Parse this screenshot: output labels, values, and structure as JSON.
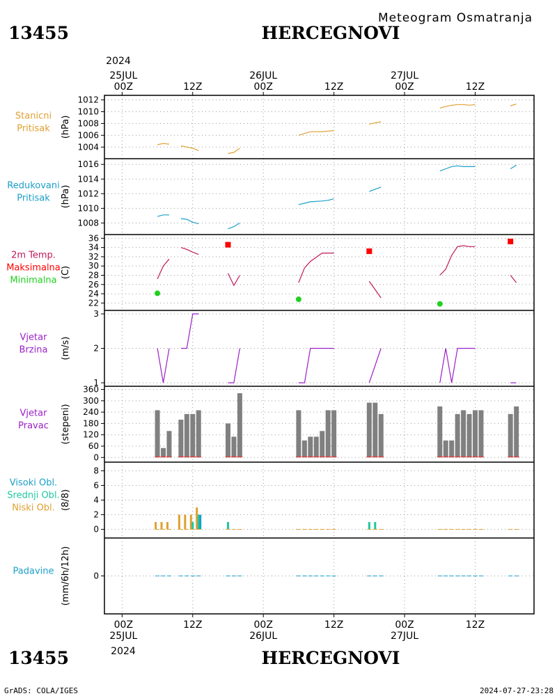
{
  "header": {
    "station_id": "13455",
    "station_name": "HERCEGNOVI",
    "subtitle": "Meteogram Osmatranja",
    "top_axis": {
      "year": "2024",
      "labels": [
        {
          "t": 0,
          "lines": [
            "25JUL",
            "00Z"
          ]
        },
        {
          "t": 12,
          "lines": [
            "12Z"
          ]
        },
        {
          "t": 24,
          "lines": [
            "26JUL",
            "00Z"
          ]
        },
        {
          "t": 36,
          "lines": [
            "12Z"
          ]
        },
        {
          "t": 48,
          "lines": [
            "27JUL",
            "00Z"
          ]
        },
        {
          "t": 60,
          "lines": [
            "12Z"
          ]
        }
      ]
    }
  },
  "footer": {
    "station_id": "13455",
    "station_name": "HERCEGNOVI",
    "credit": "GrADS: COLA/IGES",
    "timestamp": "2024-07-27-23:28",
    "bottom_axis": {
      "year": "2024",
      "labels": [
        {
          "t": 0,
          "lines": [
            "00Z",
            "25JUL"
          ]
        },
        {
          "t": 12,
          "lines": [
            "12Z"
          ]
        },
        {
          "t": 24,
          "lines": [
            "00Z",
            "26JUL"
          ]
        },
        {
          "t": 36,
          "lines": [
            "12Z"
          ]
        },
        {
          "t": 48,
          "lines": [
            "00Z",
            "27JUL"
          ]
        },
        {
          "t": 60,
          "lines": [
            "12Z"
          ]
        }
      ]
    }
  },
  "colors": {
    "station_pressure": "#e0a030",
    "reduced_pressure": "#1a9fc8",
    "temperature": "#c0185a",
    "maximum": "#ff0000",
    "minimum": "#1fd01f",
    "wind": "#9b1fc8",
    "direction_bar": "#808080",
    "direction_base": "#ff3030",
    "high_cloud": "#1a9fc8",
    "mid_cloud": "#1fc8a0",
    "low_cloud": "#e0a030",
    "precip": "#1a9fc8"
  },
  "chart_data": [
    {
      "id": "station-pressure",
      "type": "line",
      "labels": [
        {
          "text": "Stanicni",
          "color": "#e0a030"
        },
        {
          "text": "Pritisak",
          "color": "#e0a030"
        }
      ],
      "ylabel": "(hPa)",
      "ylim": [
        1002.5,
        1012.3
      ],
      "yticks": [
        1004,
        1006,
        1008,
        1010,
        1012
      ],
      "grid": true,
      "series": [
        {
          "color": "#e0a030",
          "points": [
            [
              6,
              1004.4
            ],
            [
              7,
              1004.6
            ],
            [
              8,
              1004.5
            ]
          ]
        },
        {
          "color": "#e0a030",
          "points": [
            [
              10,
              1004.2
            ],
            [
              11,
              1004.0
            ],
            [
              12,
              1003.8
            ],
            [
              13,
              1003.4
            ]
          ]
        },
        {
          "color": "#e0a030",
          "points": [
            [
              18,
              1002.9
            ],
            [
              19,
              1003.1
            ],
            [
              20,
              1003.8
            ]
          ]
        },
        {
          "color": "#e0a030",
          "points": [
            [
              30,
              1006.0
            ],
            [
              31,
              1006.3
            ],
            [
              32,
              1006.6
            ],
            [
              34,
              1006.6
            ],
            [
              35,
              1006.7
            ],
            [
              36,
              1006.8
            ]
          ]
        },
        {
          "color": "#e0a030",
          "points": [
            [
              42,
              1007.9
            ],
            [
              44,
              1008.3
            ]
          ]
        },
        {
          "color": "#e0a030",
          "points": [
            [
              54,
              1010.6
            ],
            [
              55,
              1010.9
            ],
            [
              56,
              1011.1
            ],
            [
              57,
              1011.2
            ],
            [
              58,
              1011.2
            ],
            [
              59,
              1011.1
            ],
            [
              60,
              1011.2
            ]
          ]
        },
        {
          "color": "#e0a030",
          "points": [
            [
              66,
              1011.0
            ],
            [
              67,
              1011.3
            ]
          ]
        }
      ]
    },
    {
      "id": "reduced-pressure",
      "type": "line",
      "labels": [
        {
          "text": "Redukovani",
          "color": "#1a9fc8"
        },
        {
          "text": "Pritisak",
          "color": "#1a9fc8"
        }
      ],
      "ylabel": "(hPa)",
      "ylim": [
        1006.8,
        1016.4
      ],
      "yticks": [
        1008,
        1010,
        1012,
        1014,
        1016
      ],
      "grid": true,
      "series": [
        {
          "color": "#1a9fc8",
          "points": [
            [
              6,
              1008.9
            ],
            [
              7,
              1009.1
            ],
            [
              8,
              1009.1
            ]
          ]
        },
        {
          "color": "#1a9fc8",
          "points": [
            [
              10,
              1008.6
            ],
            [
              11,
              1008.5
            ],
            [
              12,
              1008.1
            ],
            [
              13,
              1007.9
            ]
          ]
        },
        {
          "color": "#1a9fc8",
          "points": [
            [
              18,
              1007.2
            ],
            [
              19,
              1007.5
            ],
            [
              20,
              1008.0
            ]
          ]
        },
        {
          "color": "#1a9fc8",
          "points": [
            [
              30,
              1010.5
            ],
            [
              31,
              1010.7
            ],
            [
              32,
              1010.9
            ],
            [
              34,
              1011.0
            ],
            [
              35,
              1011.1
            ],
            [
              36,
              1011.3
            ]
          ]
        },
        {
          "color": "#1a9fc8",
          "points": [
            [
              42,
              1012.3
            ],
            [
              44,
              1012.9
            ]
          ]
        },
        {
          "color": "#1a9fc8",
          "points": [
            [
              54,
              1015.1
            ],
            [
              55,
              1015.4
            ],
            [
              56,
              1015.7
            ],
            [
              57,
              1015.8
            ],
            [
              58,
              1015.7
            ],
            [
              59,
              1015.7
            ],
            [
              60,
              1015.7
            ]
          ]
        },
        {
          "color": "#1a9fc8",
          "points": [
            [
              66,
              1015.4
            ],
            [
              67,
              1015.9
            ]
          ]
        }
      ]
    },
    {
      "id": "temperature",
      "type": "line",
      "labels": [
        {
          "text": "2m Temp.",
          "color": "#c0185a"
        },
        {
          "text": "Maksimalna",
          "color": "#ff0000"
        },
        {
          "text": "Minimalna",
          "color": "#1fd01f"
        }
      ],
      "ylabel": "(C)",
      "ylim": [
        21,
        36.2
      ],
      "yticks": [
        22,
        24,
        26,
        28,
        30,
        32,
        34,
        36
      ],
      "grid": true,
      "series": [
        {
          "color": "#c0185a",
          "points": [
            [
              6,
              27.2
            ],
            [
              7,
              30.0
            ],
            [
              8,
              31.5
            ]
          ]
        },
        {
          "color": "#c0185a",
          "points": [
            [
              10,
              34.0
            ],
            [
              11,
              33.6
            ],
            [
              12,
              33.0
            ],
            [
              13,
              32.5
            ]
          ]
        },
        {
          "color": "#c0185a",
          "points": [
            [
              18,
              28.4
            ],
            [
              19,
              25.8
            ],
            [
              20,
              28.0
            ]
          ]
        },
        {
          "color": "#c0185a",
          "points": [
            [
              30,
              26.4
            ],
            [
              31,
              29.6
            ],
            [
              32,
              31.0
            ],
            [
              34,
              32.8
            ],
            [
              35,
              32.8
            ],
            [
              36,
              32.8
            ]
          ]
        },
        {
          "color": "#c0185a",
          "points": [
            [
              42,
              26.7
            ],
            [
              44,
              23.1
            ]
          ]
        },
        {
          "color": "#c0185a",
          "points": [
            [
              54,
              28.0
            ],
            [
              55,
              29.3
            ],
            [
              56,
              32.3
            ],
            [
              57,
              34.2
            ],
            [
              58,
              34.4
            ],
            [
              59,
              34.2
            ],
            [
              60,
              34.2
            ]
          ]
        },
        {
          "color": "#c0185a",
          "points": [
            [
              66,
              28.0
            ],
            [
              67,
              26.4
            ]
          ]
        }
      ],
      "maxima": [
        [
          18,
          34.6
        ],
        [
          42,
          33.2
        ],
        [
          66,
          35.3
        ]
      ],
      "minima": [
        [
          6,
          24.1
        ],
        [
          30,
          22.8
        ],
        [
          54,
          21.8
        ]
      ]
    },
    {
      "id": "wind-speed",
      "type": "line",
      "labels": [
        {
          "text": "Vjetar",
          "color": "#9b1fc8"
        },
        {
          "text": "Brzina",
          "color": "#9b1fc8"
        }
      ],
      "ylabel": "(m/s)",
      "ylim": [
        0.98,
        3.02
      ],
      "yticks": [
        1,
        2,
        3
      ],
      "grid": true,
      "series": [
        {
          "color": "#9b1fc8",
          "points": [
            [
              6,
              2
            ],
            [
              7,
              1
            ],
            [
              8,
              2
            ]
          ]
        },
        {
          "color": "#9b1fc8",
          "points": [
            [
              10,
              2
            ],
            [
              11,
              2
            ],
            [
              12,
              3
            ],
            [
              13,
              3
            ]
          ]
        },
        {
          "color": "#9b1fc8",
          "points": [
            [
              18,
              1
            ],
            [
              19,
              1
            ],
            [
              20,
              2
            ]
          ]
        },
        {
          "color": "#9b1fc8",
          "points": [
            [
              30,
              1
            ],
            [
              31,
              1
            ],
            [
              32,
              2
            ],
            [
              34,
              2
            ],
            [
              35,
              2
            ],
            [
              36,
              2
            ]
          ]
        },
        {
          "color": "#9b1fc8",
          "points": [
            [
              42,
              1
            ],
            [
              44,
              2
            ]
          ]
        },
        {
          "color": "#9b1fc8",
          "points": [
            [
              54,
              1
            ],
            [
              55,
              2
            ],
            [
              56,
              1
            ],
            [
              57,
              2
            ],
            [
              58,
              2
            ],
            [
              59,
              2
            ],
            [
              60,
              2
            ]
          ]
        },
        {
          "color": "#9b1fc8",
          "points": [
            [
              66,
              1
            ],
            [
              67,
              1
            ]
          ]
        }
      ]
    },
    {
      "id": "wind-direction",
      "type": "bar",
      "labels": [
        {
          "text": "Vjetar",
          "color": "#9b1fc8"
        },
        {
          "text": "Pravac",
          "color": "#9b1fc8"
        }
      ],
      "ylabel": "(stepeni)",
      "ylim": [
        -10,
        362
      ],
      "yticks": [
        0,
        60,
        120,
        180,
        240,
        300,
        360
      ],
      "ytick_labels": [
        "0",
        "60",
        "120",
        "180",
        "240",
        "300",
        "360"
      ],
      "grid": true,
      "x": [
        6,
        7,
        8,
        10,
        11,
        12,
        13,
        18,
        19,
        20,
        30,
        31,
        32,
        33,
        34,
        35,
        36,
        42,
        43,
        44,
        54,
        55,
        56,
        57,
        58,
        59,
        60,
        61,
        66,
        67
      ],
      "values": [
        250,
        50,
        140,
        200,
        230,
        230,
        250,
        180,
        110,
        340,
        250,
        90,
        110,
        110,
        140,
        250,
        250,
        290,
        290,
        230,
        270,
        90,
        90,
        230,
        250,
        230,
        250,
        250,
        230,
        270
      ]
    },
    {
      "id": "clouds",
      "type": "bar",
      "labels": [
        {
          "text": "Visoki Obl.",
          "color": "#1a9fc8"
        },
        {
          "text": "Srednji Obl.",
          "color": "#1fc8a0"
        },
        {
          "text": "Niski Obl.",
          "color": "#e0a030"
        }
      ],
      "ylabel": "(8/8)",
      "ylim": [
        -0.8,
        8.8
      ],
      "yticks": [
        0,
        2,
        4,
        6,
        8
      ],
      "grid": true,
      "series": [
        {
          "name": "Niski Obl.",
          "color": "#e0a030",
          "x": [
            6,
            7,
            8,
            10,
            11,
            12,
            13
          ],
          "values": [
            1,
            1,
            1,
            2,
            2,
            2,
            3
          ]
        },
        {
          "name": "Srednji Obl.",
          "color": "#1fc8a0",
          "x": [
            12,
            13,
            18,
            42,
            43
          ],
          "values": [
            1,
            2,
            1,
            1,
            1
          ]
        },
        {
          "name": "Visoki Obl.",
          "color": "#1a9fc8",
          "x": [
            13
          ],
          "values": [
            2
          ]
        }
      ],
      "zero_x": [
        6,
        7,
        8,
        10,
        11,
        12,
        13,
        18,
        19,
        20,
        30,
        31,
        32,
        33,
        34,
        35,
        36,
        42,
        43,
        44,
        54,
        55,
        56,
        57,
        58,
        59,
        60,
        61,
        66,
        67
      ]
    },
    {
      "id": "precipitation",
      "type": "bar",
      "labels": [
        {
          "text": "Padavine",
          "color": "#1a9fc8"
        }
      ],
      "ylabel": "(mm/6h/12h)",
      "ylim": [
        -1,
        1
      ],
      "yticks": [
        0
      ],
      "grid": true,
      "zero_x": [
        6,
        7,
        8,
        10,
        11,
        12,
        13,
        18,
        19,
        20,
        30,
        31,
        32,
        33,
        34,
        35,
        36,
        42,
        43,
        44,
        54,
        55,
        56,
        57,
        58,
        59,
        60,
        61,
        66,
        67
      ]
    }
  ]
}
